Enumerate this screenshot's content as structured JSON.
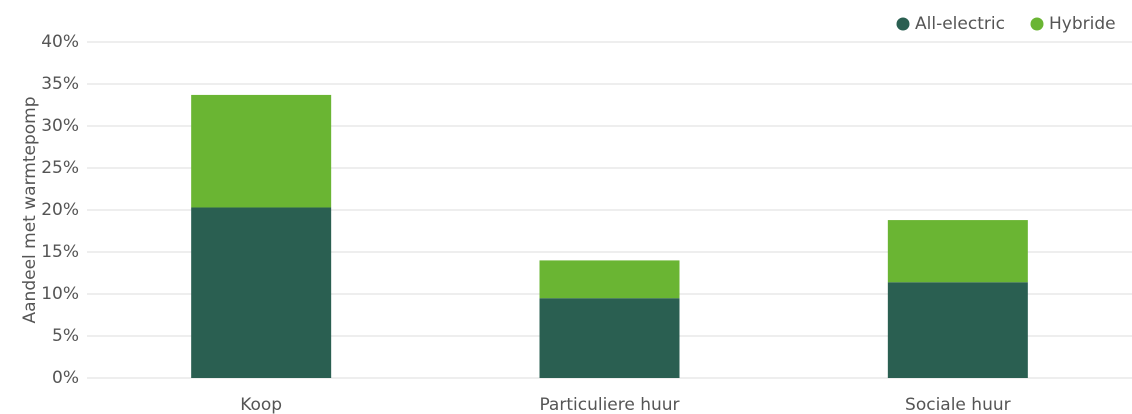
{
  "chart_data": {
    "type": "stacked_bar",
    "ylabel": "Aandeel met warmtepomp",
    "categories": [
      "Koop",
      "Particuliere huur",
      "Sociale huur"
    ],
    "series": [
      {
        "name": "All-electric",
        "color": "#2a5f51",
        "values": [
          20.3,
          9.5,
          11.4
        ]
      },
      {
        "name": "Hybride",
        "color": "#6ab533",
        "values": [
          13.4,
          4.5,
          7.4
        ]
      }
    ],
    "ylim": [
      0,
      40
    ],
    "yticks": [
      {
        "value": 0,
        "label": "0%"
      },
      {
        "value": 5,
        "label": "5%"
      },
      {
        "value": 10,
        "label": "10%"
      },
      {
        "value": 15,
        "label": "15%"
      },
      {
        "value": 20,
        "label": "20%"
      },
      {
        "value": 25,
        "label": "25%"
      },
      {
        "value": 30,
        "label": "30%"
      },
      {
        "value": 35,
        "label": "35%"
      },
      {
        "value": 40,
        "label": "40%"
      }
    ],
    "grid": true,
    "legend": "top-right"
  }
}
